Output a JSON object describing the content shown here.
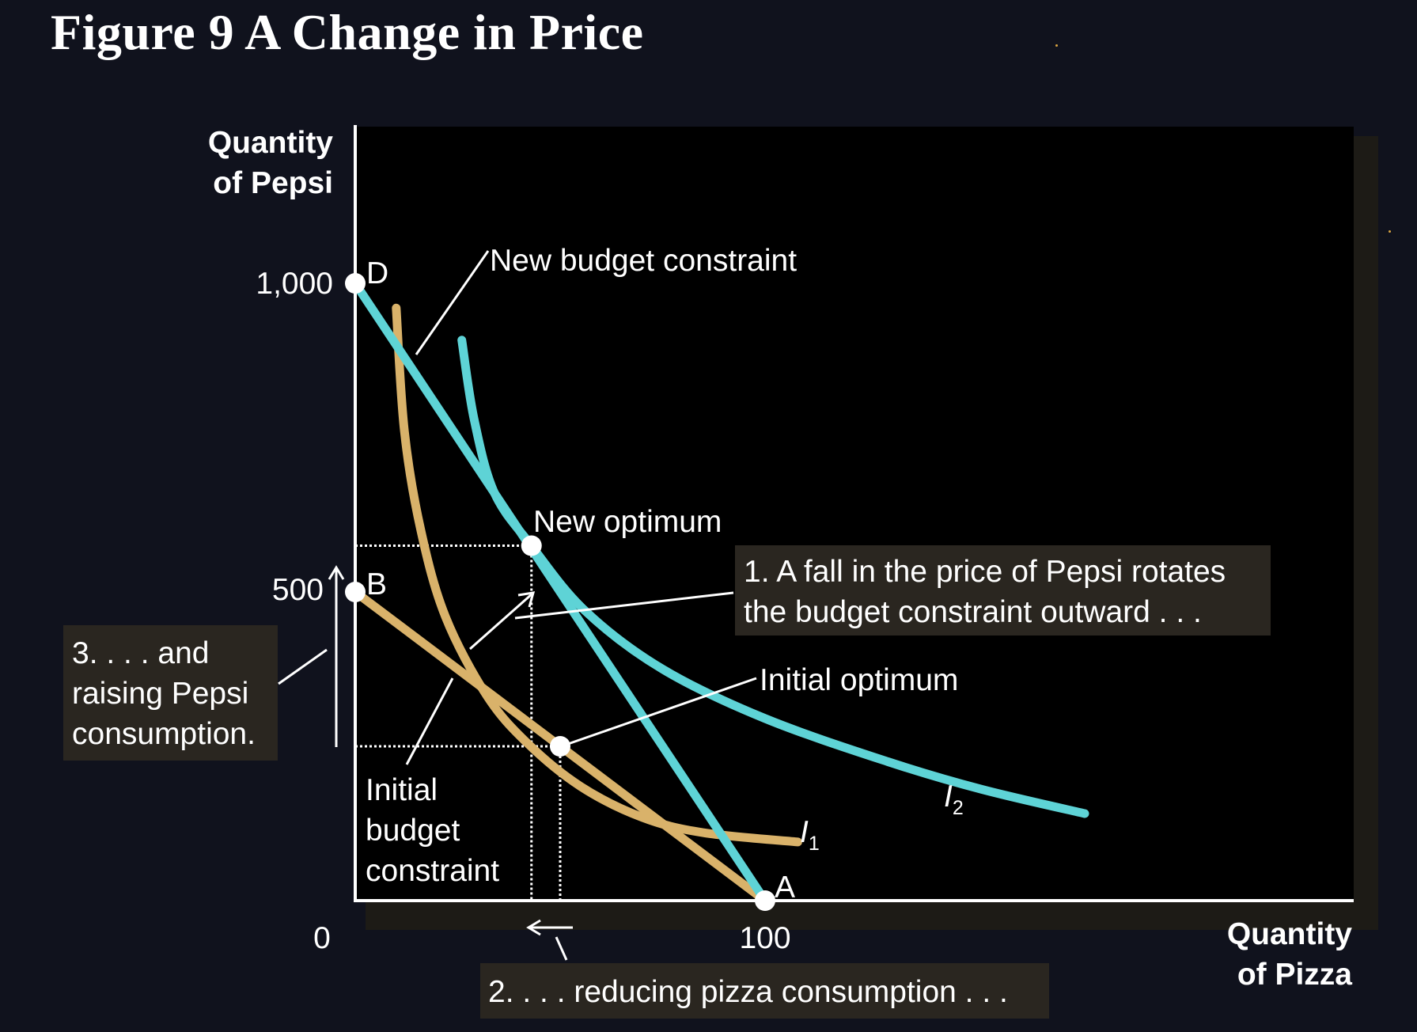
{
  "title": "Figure 9 A Change in Price",
  "chart_data": {
    "type": "line",
    "x_axis": {
      "label_lines": [
        "Quantity",
        "of Pizza"
      ],
      "ticks": [
        0,
        100
      ],
      "tick_labels": [
        "0",
        "100"
      ],
      "range": [
        0,
        248
      ]
    },
    "y_axis": {
      "label_lines": [
        "Quantity",
        "of Pepsi"
      ],
      "ticks": [
        500,
        1000
      ],
      "tick_labels": [
        "500",
        "1,000"
      ],
      "range": [
        0,
        1255
      ]
    },
    "grid": false,
    "colors": {
      "budget_initial": "#d9b26a",
      "budget_new": "#5ed3d6",
      "indifference_1": "#d9b26a",
      "indifference_2": "#5ed3d6"
    },
    "budget_constraints": [
      {
        "id": "initial",
        "points": [
          [
            0,
            500
          ],
          [
            100,
            0
          ]
        ]
      },
      {
        "id": "new",
        "points": [
          [
            0,
            1000
          ],
          [
            100,
            0
          ]
        ]
      }
    ],
    "indifference_curves": [
      {
        "id": "I1",
        "label_main": "I",
        "label_sub": "1",
        "points": [
          [
            10,
            960
          ],
          [
            12,
            760
          ],
          [
            16,
            600
          ],
          [
            22,
            460
          ],
          [
            32,
            333
          ],
          [
            42,
            255
          ],
          [
            55,
            185
          ],
          [
            70,
            135
          ],
          [
            85,
            110
          ],
          [
            108,
            95
          ]
        ]
      },
      {
        "id": "I2",
        "label_main": "I",
        "label_sub": "2",
        "points": [
          [
            26,
            908
          ],
          [
            29,
            780
          ],
          [
            34,
            660
          ],
          [
            43,
            575
          ],
          [
            56,
            470
          ],
          [
            75,
            375
          ],
          [
            100,
            295
          ],
          [
            130,
            225
          ],
          [
            153,
            180
          ],
          [
            178,
            141
          ]
        ]
      }
    ],
    "points": [
      {
        "id": "D",
        "label": "D",
        "x": 0,
        "y": 1000
      },
      {
        "id": "B",
        "label": "B",
        "x": 0,
        "y": 500
      },
      {
        "id": "A",
        "label": "A",
        "x": 100,
        "y": 0
      },
      {
        "id": "new_opt",
        "label": "New optimum",
        "x": 43,
        "y": 575
      },
      {
        "id": "init_opt",
        "label": "Initial optimum",
        "x": 50,
        "y": 250
      }
    ],
    "annotations": {
      "new_budget": "New budget constraint",
      "initial_budget": [
        "Initial",
        "budget",
        "constraint"
      ],
      "step1": [
        "1. A fall in the price of Pepsi rotates",
        "the budget constraint outward . . ."
      ],
      "step2": "2. . . . reducing pizza consumption . . .",
      "step3": [
        "3. . . . and",
        "raising Pepsi",
        "consumption."
      ]
    }
  }
}
